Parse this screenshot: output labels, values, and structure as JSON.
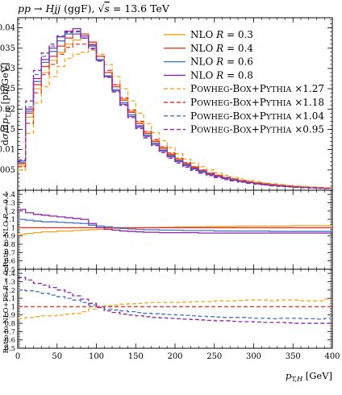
{
  "chart_data": {
    "type": "line",
    "title": "pp → Hjj (ggF), √s = 13.6 TeV",
    "xlabel": "pₜ,H [GeV]",
    "ylabel": "dσ/dpₜ,H [pb/GeV]",
    "x_range": [
      0,
      400
    ],
    "x_ticks": [
      0,
      50,
      100,
      150,
      200,
      250,
      300,
      350,
      400
    ],
    "bin_width": 10,
    "legend_position": "top-right",
    "main_panel": {
      "y_range": [
        0,
        0.0425
      ],
      "y_ticks": [
        "0.005",
        "0.01",
        "0.015",
        "0.02",
        "0.025",
        "0.03",
        "0.035",
        "0.04"
      ],
      "series": [
        {
          "name": "NLO R = 0.3",
          "style": "solid",
          "color": "#f5a623",
          "values": [
            0.006,
            0.018,
            0.025,
            0.029,
            0.032,
            0.034,
            0.036,
            0.037,
            0.0375,
            0.036,
            0.033,
            0.029,
            0.026,
            0.0225,
            0.0195,
            0.0168,
            0.0143,
            0.0123,
            0.0106,
            0.0091,
            0.0078,
            0.0067,
            0.0058,
            0.005,
            0.0043,
            0.0037,
            0.0032,
            0.0028,
            0.0024,
            0.0021,
            0.0018,
            0.0016,
            0.0014,
            0.0012,
            0.00105,
            0.00092,
            0.0008,
            0.0007,
            0.00062,
            0.00055
          ]
        },
        {
          "name": "NLO R = 0.4",
          "style": "solid",
          "color": "#e8392d",
          "values": [
            0.0065,
            0.019,
            0.026,
            0.0305,
            0.033,
            0.0355,
            0.0375,
            0.0385,
            0.0385,
            0.0365,
            0.033,
            0.029,
            0.0255,
            0.0222,
            0.0192,
            0.0164,
            0.014,
            0.012,
            0.0103,
            0.0088,
            0.0075,
            0.0065,
            0.0056,
            0.0048,
            0.0041,
            0.0036,
            0.0031,
            0.0027,
            0.0023,
            0.002,
            0.0017,
            0.0015,
            0.0013,
            0.00115,
            0.001,
            0.00088,
            0.00077,
            0.00068,
            0.0006,
            0.00053
          ]
        },
        {
          "name": "NLO R = 0.6",
          "style": "solid",
          "color": "#4472c4",
          "values": [
            0.0068,
            0.0195,
            0.0268,
            0.0315,
            0.0342,
            0.0368,
            0.0385,
            0.0385,
            0.0375,
            0.0355,
            0.0322,
            0.0282,
            0.0248,
            0.0216,
            0.0186,
            0.0159,
            0.0136,
            0.0116,
            0.0099,
            0.0085,
            0.0073,
            0.0063,
            0.0054,
            0.0047,
            0.004,
            0.0034,
            0.003,
            0.0026,
            0.0022,
            0.0019,
            0.0017,
            0.0014,
            0.0012,
            0.0011,
            0.00095,
            0.00083,
            0.00073,
            0.00064,
            0.00057,
            0.0005
          ]
        },
        {
          "name": "NLO R = 0.8",
          "style": "solid",
          "color": "#8e24aa",
          "values": [
            0.0072,
            0.02,
            0.0275,
            0.0322,
            0.035,
            0.0378,
            0.0392,
            0.0398,
            0.038,
            0.0358,
            0.032,
            0.028,
            0.0245,
            0.0212,
            0.0182,
            0.0156,
            0.0133,
            0.0113,
            0.0097,
            0.0083,
            0.0071,
            0.0061,
            0.0053,
            0.0045,
            0.0039,
            0.0034,
            0.0029,
            0.0025,
            0.0022,
            0.0019,
            0.0016,
            0.0014,
            0.0012,
            0.00105,
            0.00092,
            0.0008,
            0.0007,
            0.00062,
            0.00055,
            0.00048
          ]
        },
        {
          "name": "Powheg-Box+Pythia ×1.27",
          "style": "dashed",
          "color": "#f5a623",
          "values": [
            0.005,
            0.014,
            0.0215,
            0.0255,
            0.028,
            0.0305,
            0.0325,
            0.0335,
            0.034,
            0.0345,
            0.0335,
            0.031,
            0.028,
            0.025,
            0.022,
            0.019,
            0.0164,
            0.0142,
            0.0122,
            0.0105,
            0.009,
            0.0077,
            0.0067,
            0.0058,
            0.005,
            0.0043,
            0.0037,
            0.0032,
            0.0028,
            0.0024,
            0.0021,
            0.0018,
            0.0016,
            0.0014,
            0.0012,
            0.00105,
            0.00092,
            0.0008,
            0.00071,
            0.00062
          ]
        },
        {
          "name": "Powheg-Box+Pythia ×1.18",
          "style": "dashed",
          "color": "#e8392d",
          "values": [
            0.0058,
            0.0165,
            0.024,
            0.0285,
            0.031,
            0.0335,
            0.0352,
            0.036,
            0.036,
            0.035,
            0.033,
            0.0295,
            0.026,
            0.0228,
            0.0198,
            0.017,
            0.0145,
            0.0125,
            0.0107,
            0.0092,
            0.0079,
            0.0068,
            0.0058,
            0.005,
            0.0043,
            0.0037,
            0.0032,
            0.0028,
            0.0024,
            0.0021,
            0.0018,
            0.0016,
            0.0014,
            0.0012,
            0.00105,
            0.00092,
            0.0008,
            0.0007,
            0.00062,
            0.00055
          ]
        },
        {
          "name": "Powheg-Box+Pythia ×1.04",
          "style": "dashed",
          "color": "#4472c4",
          "values": [
            0.0072,
            0.0205,
            0.0285,
            0.033,
            0.0355,
            0.0378,
            0.0388,
            0.039,
            0.0375,
            0.035,
            0.032,
            0.028,
            0.0245,
            0.0212,
            0.0182,
            0.0155,
            0.0132,
            0.0113,
            0.0096,
            0.0082,
            0.007,
            0.006,
            0.0051,
            0.0044,
            0.0038,
            0.0032,
            0.0028,
            0.0024,
            0.0021,
            0.0018,
            0.0015,
            0.0013,
            0.0011,
            0.001,
            0.00087,
            0.00076,
            0.00066,
            0.00058,
            0.00051,
            0.00045
          ]
        },
        {
          "name": "Powheg-Box+Pythia ×0.95",
          "style": "dashed",
          "color": "#8e24aa",
          "values": [
            0.0075,
            0.022,
            0.0295,
            0.0338,
            0.036,
            0.038,
            0.039,
            0.0392,
            0.0375,
            0.0348,
            0.0318,
            0.0278,
            0.0242,
            0.0209,
            0.0179,
            0.0152,
            0.0129,
            0.011,
            0.0093,
            0.0079,
            0.0067,
            0.0057,
            0.0049,
            0.0042,
            0.0036,
            0.0031,
            0.0026,
            0.0023,
            0.002,
            0.0017,
            0.0015,
            0.0013,
            0.0011,
            0.00095,
            0.00083,
            0.00072,
            0.00063,
            0.00055,
            0.00048,
            0.00042
          ]
        }
      ]
    },
    "ratio_panel_1": {
      "ylabel": "Ratio to NLO R = 0.4",
      "y_range": [
        0.5,
        1.45
      ],
      "y_ticks": [
        "0.5",
        "0.6",
        "0.7",
        "0.8",
        "0.9",
        "1",
        "1.1",
        "1.2",
        "1.3",
        "1.4"
      ],
      "series": [
        {
          "name": "NLO R = 0.3",
          "style": "solid",
          "color": "#f5a623",
          "values": [
            0.92,
            0.93,
            0.94,
            0.95,
            0.95,
            0.96,
            0.96,
            0.965,
            0.97,
            0.975,
            0.98,
            0.985,
            0.99,
            0.99,
            0.995,
            1.0,
            1.0,
            1.0,
            1.005,
            1.005,
            1.01,
            1.01,
            1.01,
            1.01,
            1.015,
            1.015,
            1.015,
            1.015,
            1.02,
            1.02,
            1.02,
            1.02,
            1.02,
            1.02,
            1.02,
            1.025,
            1.025,
            1.025,
            1.025,
            1.025
          ]
        },
        {
          "name": "NLO R = 0.4",
          "style": "solid",
          "color": "#e8392d",
          "values": [
            1,
            1,
            1,
            1,
            1,
            1,
            1,
            1,
            1,
            1,
            1,
            1,
            1,
            1,
            1,
            1,
            1,
            1,
            1,
            1,
            1,
            1,
            1,
            1,
            1,
            1,
            1,
            1,
            1,
            1,
            1,
            1,
            1,
            1,
            1,
            1,
            1,
            1,
            1,
            1
          ]
        },
        {
          "name": "NLO R = 0.6",
          "style": "solid",
          "color": "#4472c4",
          "values": [
            1.1,
            1.09,
            1.08,
            1.07,
            1.07,
            1.065,
            1.06,
            1.055,
            1.05,
            1.03,
            1.02,
            1.01,
            1.0,
            0.99,
            0.985,
            0.98,
            0.975,
            0.975,
            0.97,
            0.97,
            0.97,
            0.965,
            0.965,
            0.965,
            0.965,
            0.96,
            0.96,
            0.96,
            0.96,
            0.96,
            0.96,
            0.96,
            0.955,
            0.955,
            0.955,
            0.955,
            0.955,
            0.955,
            0.955,
            0.955
          ]
        },
        {
          "name": "NLO R = 0.8",
          "style": "solid",
          "color": "#8e24aa",
          "values": [
            1.22,
            1.18,
            1.16,
            1.15,
            1.14,
            1.13,
            1.12,
            1.11,
            1.1,
            1.05,
            1.0,
            0.98,
            0.97,
            0.96,
            0.955,
            0.95,
            0.945,
            0.945,
            0.94,
            0.94,
            0.94,
            0.94,
            0.94,
            0.935,
            0.935,
            0.935,
            0.935,
            0.935,
            0.935,
            0.935,
            0.935,
            0.935,
            0.935,
            0.935,
            0.935,
            0.935,
            0.935,
            0.935,
            0.935,
            0.935
          ]
        }
      ]
    },
    "ratio_panel_2": {
      "ylabel": "Ratio to NLO+PS R = 0.4",
      "y_range": [
        0.5,
        1.45
      ],
      "y_ticks": [
        "0.5",
        "0.6",
        "0.7",
        "0.8",
        "0.9",
        "1",
        "1.1",
        "1.2",
        "1.3",
        "1.4"
      ],
      "series": [
        {
          "name": "Powheg-Box+Pythia ×1.27",
          "style": "dashed",
          "color": "#f5a623",
          "values": [
            0.86,
            0.87,
            0.88,
            0.89,
            0.89,
            0.9,
            0.91,
            0.92,
            0.94,
            0.97,
            1.0,
            1.01,
            1.02,
            1.03,
            1.035,
            1.04,
            1.045,
            1.05,
            1.05,
            1.05,
            1.05,
            1.055,
            1.06,
            1.06,
            1.06,
            1.07,
            1.07,
            1.07,
            1.075,
            1.08,
            1.08,
            1.08,
            1.07,
            1.08,
            1.08,
            1.08,
            1.07,
            1.07,
            1.07,
            1.09
          ]
        },
        {
          "name": "Powheg-Box+Pythia ×1.18",
          "style": "dashed",
          "color": "#e8392d",
          "values": [
            1,
            1,
            1,
            1,
            1,
            1,
            1,
            1,
            1,
            1,
            1,
            1,
            1,
            1,
            1,
            1,
            1,
            1,
            1,
            1,
            1,
            1,
            1,
            1,
            1,
            1,
            1,
            1,
            1,
            1,
            1,
            1,
            1,
            1,
            1,
            1,
            1,
            1,
            1,
            1
          ]
        },
        {
          "name": "Powheg-Box+Pythia ×1.04",
          "style": "dashed",
          "color": "#4472c4",
          "values": [
            1.2,
            1.19,
            1.18,
            1.16,
            1.14,
            1.12,
            1.1,
            1.08,
            1.05,
            1.02,
            0.99,
            0.97,
            0.96,
            0.95,
            0.94,
            0.93,
            0.92,
            0.915,
            0.91,
            0.905,
            0.9,
            0.895,
            0.89,
            0.885,
            0.88,
            0.875,
            0.87,
            0.87,
            0.87,
            0.865,
            0.86,
            0.86,
            0.855,
            0.86,
            0.86,
            0.86,
            0.855,
            0.855,
            0.85,
            0.86
          ]
        },
        {
          "name": "Powheg-Box+Pythia ×0.95",
          "style": "dashed",
          "color": "#8e24aa",
          "values": [
            1.35,
            1.32,
            1.28,
            1.26,
            1.23,
            1.2,
            1.17,
            1.13,
            1.09,
            1.04,
            0.99,
            0.95,
            0.93,
            0.91,
            0.9,
            0.89,
            0.88,
            0.87,
            0.865,
            0.86,
            0.855,
            0.85,
            0.845,
            0.84,
            0.835,
            0.83,
            0.83,
            0.825,
            0.82,
            0.82,
            0.815,
            0.81,
            0.81,
            0.81,
            0.805,
            0.8,
            0.8,
            0.8,
            0.8,
            0.8
          ]
        }
      ]
    }
  }
}
